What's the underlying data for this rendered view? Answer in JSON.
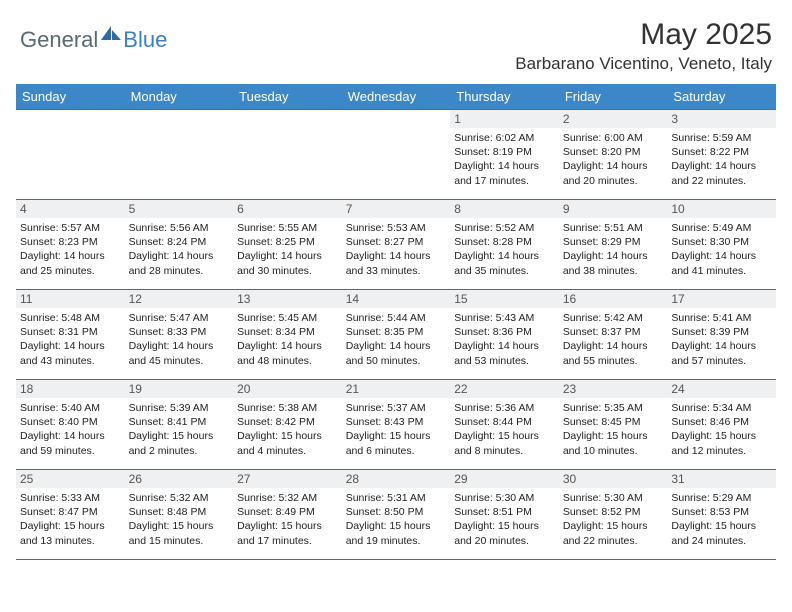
{
  "logo": {
    "general": "General",
    "blue": "Blue"
  },
  "title": "May 2025",
  "location": "Barbarano Vicentino, Veneto, Italy",
  "colors": {
    "header_bg": "#3b87c8",
    "header_text": "#ffffff",
    "border": "#3b6f9e",
    "daynum_bg": "#eef0f2",
    "logo_gray": "#5a6a72",
    "logo_blue": "#3b7fc4"
  },
  "day_names": [
    "Sunday",
    "Monday",
    "Tuesday",
    "Wednesday",
    "Thursday",
    "Friday",
    "Saturday"
  ],
  "weeks": [
    [
      {
        "empty": true
      },
      {
        "empty": true
      },
      {
        "empty": true
      },
      {
        "empty": true
      },
      {
        "n": "1",
        "sr": "Sunrise: 6:02 AM",
        "ss": "Sunset: 8:19 PM",
        "d1": "Daylight: 14 hours",
        "d2": "and 17 minutes."
      },
      {
        "n": "2",
        "sr": "Sunrise: 6:00 AM",
        "ss": "Sunset: 8:20 PM",
        "d1": "Daylight: 14 hours",
        "d2": "and 20 minutes."
      },
      {
        "n": "3",
        "sr": "Sunrise: 5:59 AM",
        "ss": "Sunset: 8:22 PM",
        "d1": "Daylight: 14 hours",
        "d2": "and 22 minutes."
      }
    ],
    [
      {
        "n": "4",
        "sr": "Sunrise: 5:57 AM",
        "ss": "Sunset: 8:23 PM",
        "d1": "Daylight: 14 hours",
        "d2": "and 25 minutes."
      },
      {
        "n": "5",
        "sr": "Sunrise: 5:56 AM",
        "ss": "Sunset: 8:24 PM",
        "d1": "Daylight: 14 hours",
        "d2": "and 28 minutes."
      },
      {
        "n": "6",
        "sr": "Sunrise: 5:55 AM",
        "ss": "Sunset: 8:25 PM",
        "d1": "Daylight: 14 hours",
        "d2": "and 30 minutes."
      },
      {
        "n": "7",
        "sr": "Sunrise: 5:53 AM",
        "ss": "Sunset: 8:27 PM",
        "d1": "Daylight: 14 hours",
        "d2": "and 33 minutes."
      },
      {
        "n": "8",
        "sr": "Sunrise: 5:52 AM",
        "ss": "Sunset: 8:28 PM",
        "d1": "Daylight: 14 hours",
        "d2": "and 35 minutes."
      },
      {
        "n": "9",
        "sr": "Sunrise: 5:51 AM",
        "ss": "Sunset: 8:29 PM",
        "d1": "Daylight: 14 hours",
        "d2": "and 38 minutes."
      },
      {
        "n": "10",
        "sr": "Sunrise: 5:49 AM",
        "ss": "Sunset: 8:30 PM",
        "d1": "Daylight: 14 hours",
        "d2": "and 41 minutes."
      }
    ],
    [
      {
        "n": "11",
        "sr": "Sunrise: 5:48 AM",
        "ss": "Sunset: 8:31 PM",
        "d1": "Daylight: 14 hours",
        "d2": "and 43 minutes."
      },
      {
        "n": "12",
        "sr": "Sunrise: 5:47 AM",
        "ss": "Sunset: 8:33 PM",
        "d1": "Daylight: 14 hours",
        "d2": "and 45 minutes."
      },
      {
        "n": "13",
        "sr": "Sunrise: 5:45 AM",
        "ss": "Sunset: 8:34 PM",
        "d1": "Daylight: 14 hours",
        "d2": "and 48 minutes."
      },
      {
        "n": "14",
        "sr": "Sunrise: 5:44 AM",
        "ss": "Sunset: 8:35 PM",
        "d1": "Daylight: 14 hours",
        "d2": "and 50 minutes."
      },
      {
        "n": "15",
        "sr": "Sunrise: 5:43 AM",
        "ss": "Sunset: 8:36 PM",
        "d1": "Daylight: 14 hours",
        "d2": "and 53 minutes."
      },
      {
        "n": "16",
        "sr": "Sunrise: 5:42 AM",
        "ss": "Sunset: 8:37 PM",
        "d1": "Daylight: 14 hours",
        "d2": "and 55 minutes."
      },
      {
        "n": "17",
        "sr": "Sunrise: 5:41 AM",
        "ss": "Sunset: 8:39 PM",
        "d1": "Daylight: 14 hours",
        "d2": "and 57 minutes."
      }
    ],
    [
      {
        "n": "18",
        "sr": "Sunrise: 5:40 AM",
        "ss": "Sunset: 8:40 PM",
        "d1": "Daylight: 14 hours",
        "d2": "and 59 minutes."
      },
      {
        "n": "19",
        "sr": "Sunrise: 5:39 AM",
        "ss": "Sunset: 8:41 PM",
        "d1": "Daylight: 15 hours",
        "d2": "and 2 minutes."
      },
      {
        "n": "20",
        "sr": "Sunrise: 5:38 AM",
        "ss": "Sunset: 8:42 PM",
        "d1": "Daylight: 15 hours",
        "d2": "and 4 minutes."
      },
      {
        "n": "21",
        "sr": "Sunrise: 5:37 AM",
        "ss": "Sunset: 8:43 PM",
        "d1": "Daylight: 15 hours",
        "d2": "and 6 minutes."
      },
      {
        "n": "22",
        "sr": "Sunrise: 5:36 AM",
        "ss": "Sunset: 8:44 PM",
        "d1": "Daylight: 15 hours",
        "d2": "and 8 minutes."
      },
      {
        "n": "23",
        "sr": "Sunrise: 5:35 AM",
        "ss": "Sunset: 8:45 PM",
        "d1": "Daylight: 15 hours",
        "d2": "and 10 minutes."
      },
      {
        "n": "24",
        "sr": "Sunrise: 5:34 AM",
        "ss": "Sunset: 8:46 PM",
        "d1": "Daylight: 15 hours",
        "d2": "and 12 minutes."
      }
    ],
    [
      {
        "n": "25",
        "sr": "Sunrise: 5:33 AM",
        "ss": "Sunset: 8:47 PM",
        "d1": "Daylight: 15 hours",
        "d2": "and 13 minutes."
      },
      {
        "n": "26",
        "sr": "Sunrise: 5:32 AM",
        "ss": "Sunset: 8:48 PM",
        "d1": "Daylight: 15 hours",
        "d2": "and 15 minutes."
      },
      {
        "n": "27",
        "sr": "Sunrise: 5:32 AM",
        "ss": "Sunset: 8:49 PM",
        "d1": "Daylight: 15 hours",
        "d2": "and 17 minutes."
      },
      {
        "n": "28",
        "sr": "Sunrise: 5:31 AM",
        "ss": "Sunset: 8:50 PM",
        "d1": "Daylight: 15 hours",
        "d2": "and 19 minutes."
      },
      {
        "n": "29",
        "sr": "Sunrise: 5:30 AM",
        "ss": "Sunset: 8:51 PM",
        "d1": "Daylight: 15 hours",
        "d2": "and 20 minutes."
      },
      {
        "n": "30",
        "sr": "Sunrise: 5:30 AM",
        "ss": "Sunset: 8:52 PM",
        "d1": "Daylight: 15 hours",
        "d2": "and 22 minutes."
      },
      {
        "n": "31",
        "sr": "Sunrise: 5:29 AM",
        "ss": "Sunset: 8:53 PM",
        "d1": "Daylight: 15 hours",
        "d2": "and 24 minutes."
      }
    ]
  ]
}
